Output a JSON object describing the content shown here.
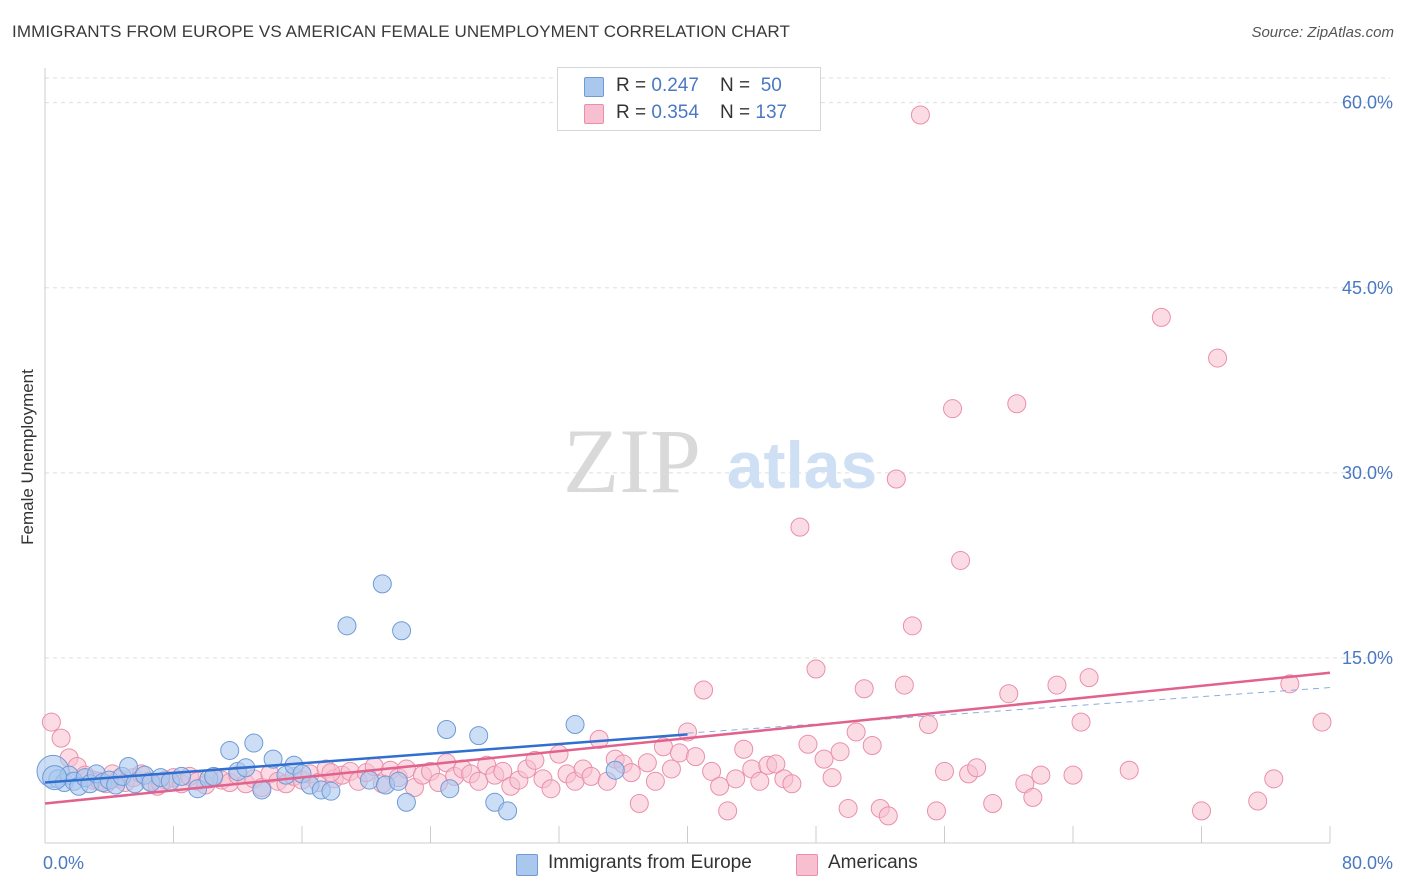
{
  "header": {
    "title": "IMMIGRANTS FROM EUROPE VS AMERICAN FEMALE UNEMPLOYMENT CORRELATION CHART",
    "source": "Source: ZipAtlas.com"
  },
  "watermark": {
    "zip": "ZIP",
    "atlas": "atlas"
  },
  "legend": {
    "europe": {
      "r_label": "R = ",
      "r_value": "0.247",
      "n_label": "N = ",
      "n_value": "50"
    },
    "americans": {
      "r_label": "R = ",
      "r_value": "0.354",
      "n_label": "N = ",
      "n_value": "137"
    }
  },
  "bottom_legend": {
    "europe": "Immigrants from Europe",
    "americans": "Americans"
  },
  "colors": {
    "europe_fill": "#aac8ee",
    "europe_stroke": "#6f9ad6",
    "europe_line": "#2f6fd0",
    "americans_fill": "#f7bfd0",
    "americans_stroke": "#ea8fab",
    "americans_line": "#e2628e",
    "axis_text": "#4a78c2",
    "grid": "#dddddd"
  },
  "chart_data": {
    "type": "scatter",
    "title": "IMMIGRANTS FROM EUROPE VS AMERICAN FEMALE UNEMPLOYMENT CORRELATION CHART",
    "xlabel": "",
    "ylabel": "Female Unemployment",
    "xlim": [
      0,
      80
    ],
    "ylim": [
      0,
      62
    ],
    "x_tick_labels": [
      {
        "value": 0,
        "label": "0.0%"
      },
      {
        "value": 80,
        "label": "80.0%"
      }
    ],
    "y_tick_labels": [
      {
        "value": 15,
        "label": "15.0%"
      },
      {
        "value": 30,
        "label": "30.0%"
      },
      {
        "value": 45,
        "label": "45.0%"
      },
      {
        "value": 60,
        "label": "60.0%"
      }
    ],
    "grid": true,
    "series": [
      {
        "name": "Immigrants from Europe",
        "points": [
          [
            0.5,
            5.8
          ],
          [
            0.8,
            5.2
          ],
          [
            1.2,
            4.9
          ],
          [
            1.5,
            5.5
          ],
          [
            1.8,
            5.0
          ],
          [
            2.1,
            4.6
          ],
          [
            2.5,
            5.3
          ],
          [
            2.8,
            4.8
          ],
          [
            3.2,
            5.6
          ],
          [
            3.6,
            4.9
          ],
          [
            4.0,
            5.1
          ],
          [
            4.4,
            4.7
          ],
          [
            4.8,
            5.4
          ],
          [
            5.2,
            6.2
          ],
          [
            5.6,
            4.8
          ],
          [
            6.2,
            5.5
          ],
          [
            6.6,
            4.9
          ],
          [
            7.2,
            5.3
          ],
          [
            7.8,
            5.0
          ],
          [
            8.5,
            5.4
          ],
          [
            9.5,
            4.4
          ],
          [
            10.2,
            5.2
          ],
          [
            10.5,
            5.4
          ],
          [
            11.5,
            7.5
          ],
          [
            12.0,
            5.8
          ],
          [
            12.5,
            6.1
          ],
          [
            13.0,
            8.1
          ],
          [
            13.5,
            4.3
          ],
          [
            14.2,
            6.8
          ],
          [
            15.0,
            5.5
          ],
          [
            15.5,
            6.3
          ],
          [
            16.0,
            5.6
          ],
          [
            16.5,
            4.7
          ],
          [
            17.2,
            4.3
          ],
          [
            17.8,
            4.2
          ],
          [
            18.8,
            17.6
          ],
          [
            20.2,
            5.1
          ],
          [
            21.0,
            21.0
          ],
          [
            21.2,
            4.7
          ],
          [
            22.0,
            5.0
          ],
          [
            22.2,
            17.2
          ],
          [
            22.5,
            3.3
          ],
          [
            25.0,
            9.2
          ],
          [
            25.2,
            4.4
          ],
          [
            27.0,
            8.7
          ],
          [
            28.0,
            3.3
          ],
          [
            28.8,
            2.6
          ],
          [
            33.0,
            9.6
          ],
          [
            35.5,
            5.9
          ],
          [
            0.6,
            5.3
          ]
        ],
        "trend": {
          "x": [
            0,
            40
          ],
          "y": [
            4.9,
            8.8
          ]
        }
      },
      {
        "name": "Americans",
        "points": [
          [
            0.4,
            9.8
          ],
          [
            1.0,
            8.5
          ],
          [
            1.5,
            6.9
          ],
          [
            2.0,
            6.2
          ],
          [
            2.5,
            5.5
          ],
          [
            3.0,
            5.1
          ],
          [
            3.4,
            5.0
          ],
          [
            3.8,
            4.8
          ],
          [
            4.2,
            5.6
          ],
          [
            4.6,
            5.2
          ],
          [
            5.0,
            4.9
          ],
          [
            5.5,
            5.3
          ],
          [
            6.0,
            5.6
          ],
          [
            6.5,
            5.0
          ],
          [
            7.0,
            4.6
          ],
          [
            7.5,
            5.1
          ],
          [
            8.0,
            5.3
          ],
          [
            8.5,
            4.8
          ],
          [
            9.0,
            5.4
          ],
          [
            9.5,
            5.0
          ],
          [
            10.0,
            4.7
          ],
          [
            10.5,
            5.3
          ],
          [
            11.0,
            5.1
          ],
          [
            11.5,
            4.9
          ],
          [
            12.0,
            5.5
          ],
          [
            12.5,
            4.8
          ],
          [
            13.0,
            5.2
          ],
          [
            13.5,
            4.5
          ],
          [
            14.0,
            5.6
          ],
          [
            14.5,
            5.0
          ],
          [
            15.0,
            4.8
          ],
          [
            15.5,
            5.4
          ],
          [
            16.0,
            5.1
          ],
          [
            16.5,
            5.6
          ],
          [
            17.0,
            4.9
          ],
          [
            17.5,
            6.0
          ],
          [
            18.0,
            5.2
          ],
          [
            18.5,
            5.5
          ],
          [
            19.0,
            5.8
          ],
          [
            19.5,
            5.0
          ],
          [
            20.0,
            5.7
          ],
          [
            20.5,
            6.2
          ],
          [
            21.0,
            4.8
          ],
          [
            21.5,
            5.9
          ],
          [
            22.0,
            5.3
          ],
          [
            22.5,
            6.0
          ],
          [
            23.0,
            4.5
          ],
          [
            23.5,
            5.5
          ],
          [
            24.0,
            5.8
          ],
          [
            24.5,
            4.9
          ],
          [
            25.0,
            6.5
          ],
          [
            25.5,
            5.4
          ],
          [
            26.0,
            6.0
          ],
          [
            26.5,
            5.6
          ],
          [
            27.0,
            5.0
          ],
          [
            27.5,
            6.3
          ],
          [
            28.0,
            5.5
          ],
          [
            28.5,
            5.8
          ],
          [
            29.0,
            4.6
          ],
          [
            29.5,
            5.1
          ],
          [
            30.0,
            6.0
          ],
          [
            30.5,
            6.7
          ],
          [
            31.0,
            5.2
          ],
          [
            31.5,
            4.4
          ],
          [
            32.0,
            7.2
          ],
          [
            32.5,
            5.6
          ],
          [
            33.0,
            5.0
          ],
          [
            33.5,
            6.0
          ],
          [
            34.0,
            5.4
          ],
          [
            34.5,
            8.4
          ],
          [
            35.0,
            5.0
          ],
          [
            35.5,
            6.8
          ],
          [
            36.0,
            6.4
          ],
          [
            36.5,
            5.7
          ],
          [
            37.0,
            3.2
          ],
          [
            37.5,
            6.5
          ],
          [
            38.0,
            5.0
          ],
          [
            38.5,
            7.8
          ],
          [
            39.0,
            6.0
          ],
          [
            39.5,
            7.3
          ],
          [
            40.0,
            9.0
          ],
          [
            40.5,
            7.0
          ],
          [
            41.0,
            12.4
          ],
          [
            41.5,
            5.8
          ],
          [
            42.0,
            4.6
          ],
          [
            42.5,
            2.6
          ],
          [
            43.0,
            5.2
          ],
          [
            43.5,
            7.6
          ],
          [
            44.0,
            6.0
          ],
          [
            44.5,
            5.0
          ],
          [
            45.0,
            6.3
          ],
          [
            45.5,
            6.4
          ],
          [
            46.0,
            5.2
          ],
          [
            46.5,
            4.8
          ],
          [
            47.0,
            25.6
          ],
          [
            47.5,
            8.0
          ],
          [
            48.0,
            14.1
          ],
          [
            48.5,
            6.8
          ],
          [
            49.0,
            5.3
          ],
          [
            49.5,
            7.4
          ],
          [
            50.0,
            2.8
          ],
          [
            50.5,
            9.0
          ],
          [
            51.0,
            12.5
          ],
          [
            51.5,
            7.9
          ],
          [
            52.0,
            2.8
          ],
          [
            52.5,
            2.2
          ],
          [
            53.0,
            29.5
          ],
          [
            53.5,
            12.8
          ],
          [
            54.0,
            17.6
          ],
          [
            54.5,
            59.0
          ],
          [
            55.0,
            9.6
          ],
          [
            55.5,
            2.6
          ],
          [
            56.0,
            5.8
          ],
          [
            56.5,
            35.2
          ],
          [
            57.0,
            22.9
          ],
          [
            57.5,
            5.6
          ],
          [
            58.0,
            6.1
          ],
          [
            59.0,
            3.2
          ],
          [
            60.0,
            12.1
          ],
          [
            60.5,
            35.6
          ],
          [
            61.0,
            4.8
          ],
          [
            61.5,
            3.7
          ],
          [
            62.0,
            5.5
          ],
          [
            63.0,
            12.8
          ],
          [
            64.0,
            5.5
          ],
          [
            64.5,
            9.8
          ],
          [
            65.0,
            13.4
          ],
          [
            67.5,
            5.9
          ],
          [
            69.5,
            42.6
          ],
          [
            72.0,
            2.6
          ],
          [
            73.0,
            39.3
          ],
          [
            75.5,
            3.4
          ],
          [
            76.5,
            5.2
          ],
          [
            77.5,
            12.9
          ],
          [
            79.5,
            9.8
          ],
          [
            17.8,
            5.7
          ],
          [
            7.2,
            4.8
          ]
        ],
        "trend": {
          "x": [
            0,
            80
          ],
          "y": [
            3.2,
            13.8
          ]
        },
        "trend_extension": {
          "x": [
            40,
            80
          ],
          "y": [
            8.9,
            12.6
          ]
        }
      }
    ]
  }
}
